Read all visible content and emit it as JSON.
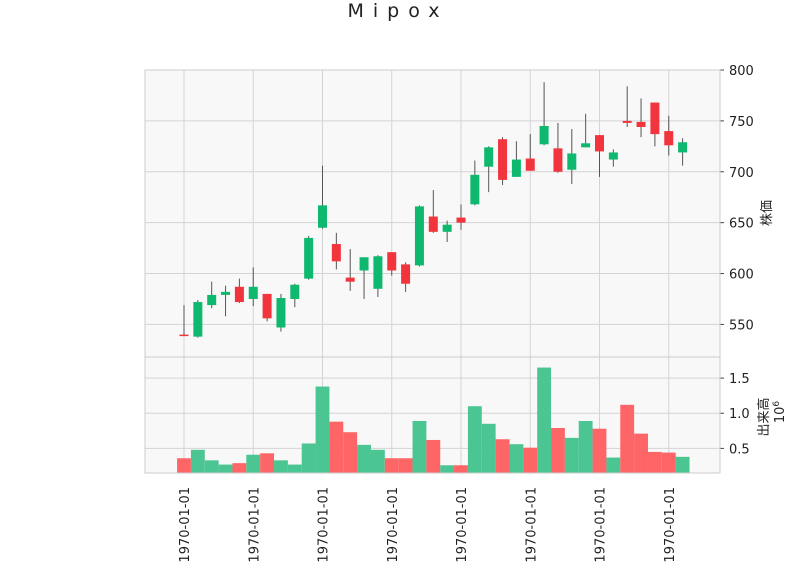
{
  "chart_data": {
    "type": "candlestick",
    "title": "Mipox",
    "price_panel": {
      "ylabel": "株価",
      "ylim": [
        518,
        800
      ],
      "yticks": [
        550,
        600,
        650,
        700,
        750,
        800
      ],
      "candles": [
        {
          "open": 540,
          "high": 569,
          "low": 539,
          "close": 539
        },
        {
          "open": 538,
          "high": 574,
          "low": 537,
          "close": 572
        },
        {
          "open": 569,
          "high": 592,
          "low": 566,
          "close": 579
        },
        {
          "open": 579,
          "high": 588,
          "low": 558,
          "close": 582
        },
        {
          "open": 587,
          "high": 595,
          "low": 571,
          "close": 572
        },
        {
          "open": 575,
          "high": 606,
          "low": 568,
          "close": 587
        },
        {
          "open": 580,
          "high": 580,
          "low": 553,
          "close": 556
        },
        {
          "open": 547,
          "high": 580,
          "low": 543,
          "close": 576
        },
        {
          "open": 575,
          "high": 590,
          "low": 567,
          "close": 589
        },
        {
          "open": 595,
          "high": 637,
          "low": 594,
          "close": 635
        },
        {
          "open": 645,
          "high": 706,
          "low": 644,
          "close": 667
        },
        {
          "open": 629,
          "high": 640,
          "low": 604,
          "close": 612
        },
        {
          "open": 596,
          "high": 624,
          "low": 583,
          "close": 592
        },
        {
          "open": 603,
          "high": 616,
          "low": 575,
          "close": 616
        },
        {
          "open": 585,
          "high": 618,
          "low": 577,
          "close": 617
        },
        {
          "open": 621,
          "high": 621,
          "low": 598,
          "close": 603
        },
        {
          "open": 609,
          "high": 611,
          "low": 582,
          "close": 590
        },
        {
          "open": 608,
          "high": 667,
          "low": 607,
          "close": 666
        },
        {
          "open": 656,
          "high": 682,
          "low": 640,
          "close": 641
        },
        {
          "open": 641,
          "high": 652,
          "low": 631,
          "close": 648
        },
        {
          "open": 655,
          "high": 668,
          "low": 643,
          "close": 650
        },
        {
          "open": 668,
          "high": 711,
          "low": 667,
          "close": 697
        },
        {
          "open": 705,
          "high": 725,
          "low": 680,
          "close": 724
        },
        {
          "open": 732,
          "high": 734,
          "low": 687,
          "close": 692
        },
        {
          "open": 695,
          "high": 730,
          "low": 695,
          "close": 712
        },
        {
          "open": 713,
          "high": 737,
          "low": 701,
          "close": 701
        },
        {
          "open": 727,
          "high": 788,
          "low": 726,
          "close": 745
        },
        {
          "open": 723,
          "high": 748,
          "low": 699,
          "close": 700
        },
        {
          "open": 702,
          "high": 742,
          "low": 688,
          "close": 718
        },
        {
          "open": 724,
          "high": 757,
          "low": 724,
          "close": 728
        },
        {
          "open": 736,
          "high": 736,
          "low": 695,
          "close": 720
        },
        {
          "open": 712,
          "high": 722,
          "low": 705,
          "close": 719
        },
        {
          "open": 750,
          "high": 784,
          "low": 744,
          "close": 748
        },
        {
          "open": 749,
          "high": 772,
          "low": 734,
          "close": 744
        },
        {
          "open": 768,
          "high": 768,
          "low": 725,
          "close": 737
        },
        {
          "open": 740,
          "high": 755,
          "low": 716,
          "close": 726
        },
        {
          "open": 719,
          "high": 733,
          "low": 706,
          "close": 729
        }
      ]
    },
    "volume_panel": {
      "ylabel": "出来高",
      "scale_label": "10",
      "scale_exponent": "6",
      "ylim": [
        0.15,
        1.8
      ],
      "yticks": [
        0.5,
        1.0,
        1.5
      ],
      "ytick_labels": [
        "0.5",
        "1.0",
        "1.5"
      ],
      "values": [
        0.36,
        0.48,
        0.33,
        0.27,
        0.29,
        0.41,
        0.43,
        0.33,
        0.27,
        0.57,
        1.38,
        0.88,
        0.73,
        0.55,
        0.48,
        0.36,
        0.36,
        0.89,
        0.62,
        0.26,
        0.26,
        1.1,
        0.85,
        0.63,
        0.56,
        0.51,
        1.65,
        0.79,
        0.65,
        0.89,
        0.78,
        0.37,
        1.12,
        0.71,
        0.45,
        0.44,
        0.38
      ]
    },
    "x_tick_labels": [
      "1970-01-01",
      "1970-01-01",
      "1970-01-01",
      "1970-01-01",
      "1970-01-01",
      "1970-01-01",
      "1970-01-01",
      "1970-01-01"
    ],
    "grid": true,
    "colors": {
      "up": "#0eb96f",
      "down": "#f2353d",
      "volume_up": "#4bc592",
      "volume_down": "#fe6567",
      "wick": "#555555",
      "panel_background": "#f8f8f8",
      "grid": "#d4d4d4"
    }
  }
}
